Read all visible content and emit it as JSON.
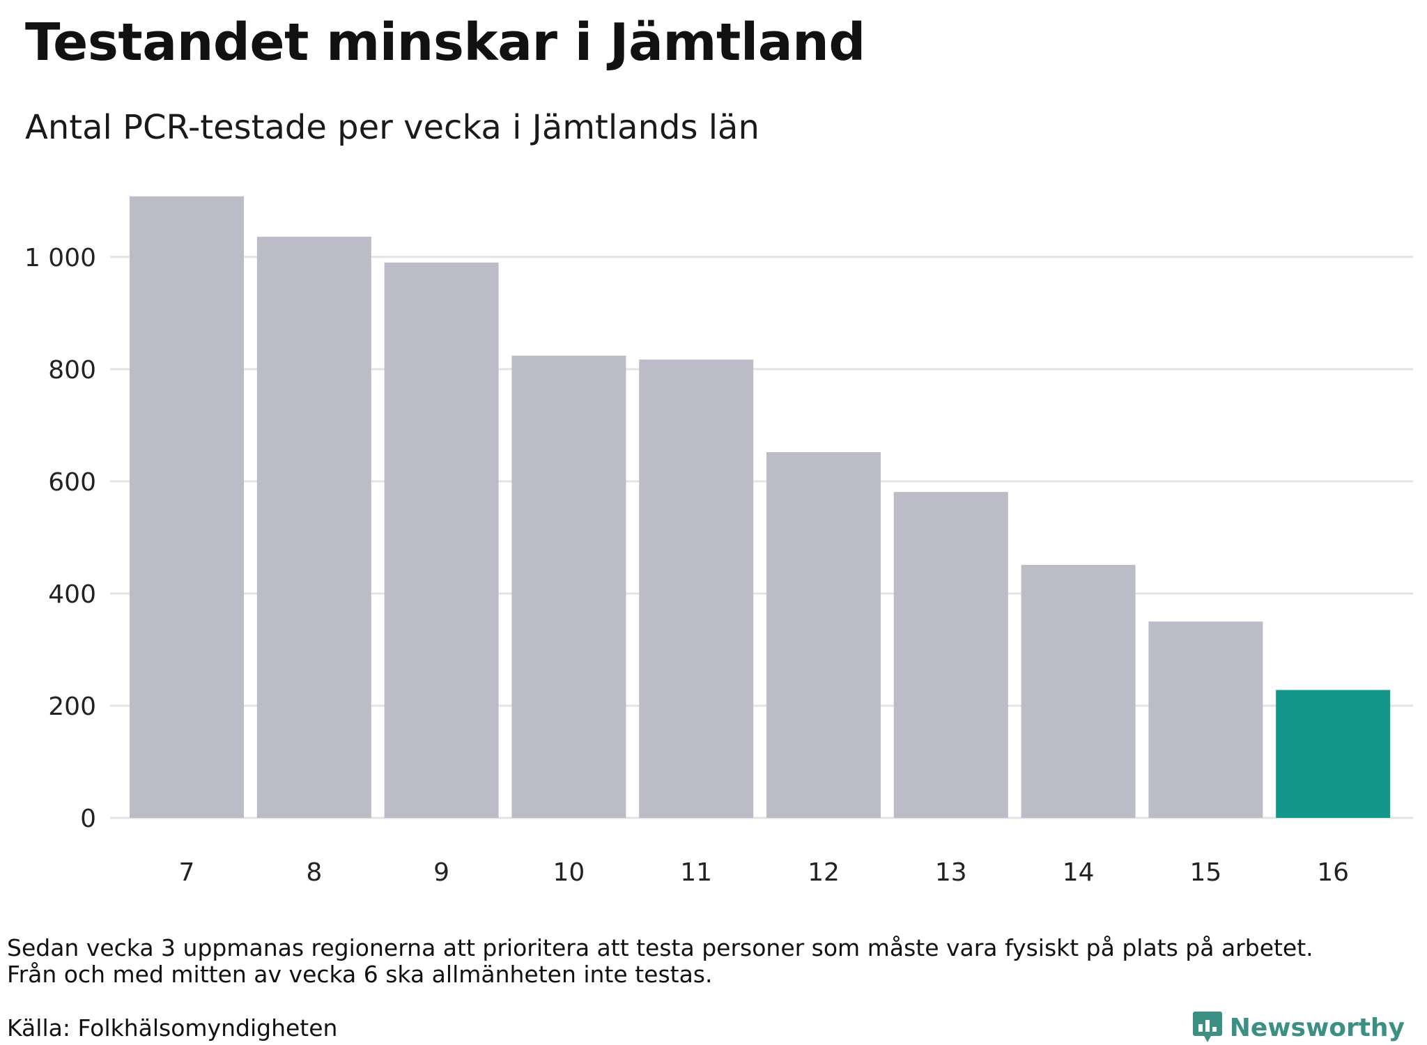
{
  "title": "Testandet minskar i Jämtland",
  "subtitle": "Antal PCR-testade per vecka i Jämtlands län",
  "note_lines": [
    "Sedan vecka 3 uppmanas regionerna att prioritera att testa personer som måste vara fysiskt på plats på arbetet.",
    "Från och med mitten av vecka 6 ska allmänheten inte testas."
  ],
  "source": "Källa: Folkhälsomyndigheten",
  "brand": {
    "name": "Newsworthy",
    "icon": "newsworthy-logo-icon",
    "color": "#3b8f83"
  },
  "colors": {
    "bar": "#bcbbc8",
    "highlight": "#13968a",
    "grid": "#e3e3e6"
  },
  "chart_data": {
    "type": "bar",
    "categories": [
      "7",
      "8",
      "9",
      "10",
      "11",
      "12",
      "13",
      "14",
      "15",
      "16"
    ],
    "values": [
      1108,
      1036,
      990,
      824,
      817,
      652,
      581,
      451,
      350,
      228
    ],
    "highlight_category": "16",
    "ylim": [
      0,
      1150
    ],
    "yticks": [
      0,
      200,
      400,
      600,
      800,
      1000
    ],
    "ytick_labels": [
      "0",
      "200",
      "400",
      "600",
      "800",
      "1 000"
    ],
    "grid": true,
    "legend": "none"
  }
}
